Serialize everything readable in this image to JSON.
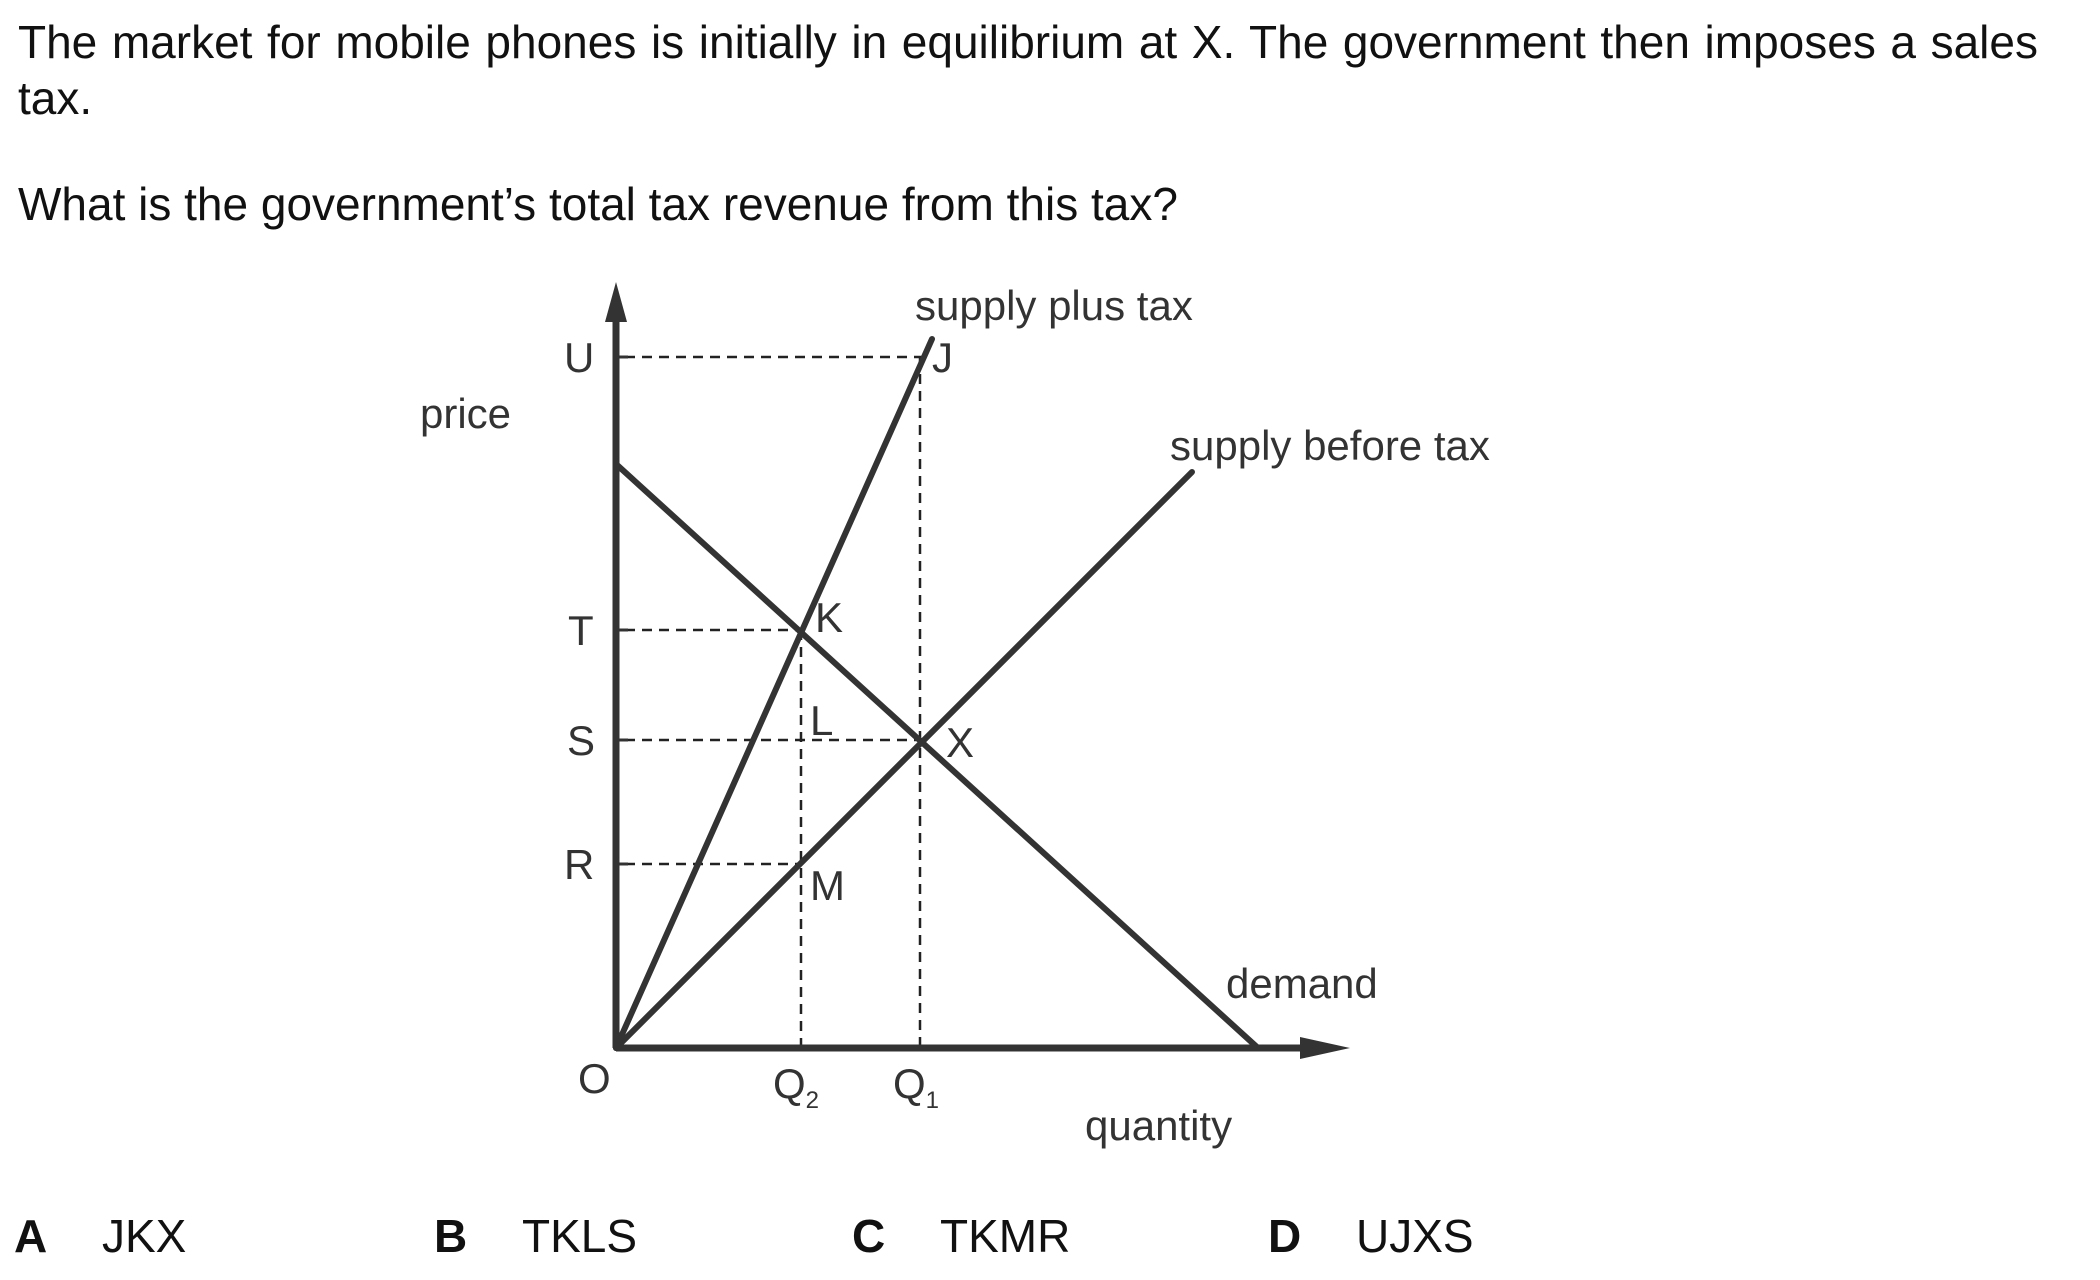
{
  "question": {
    "intro": "The market for mobile phones is initially in equilibrium at X. The government then imposes a sales tax.",
    "prompt": "What is the government’s total tax revenue from this tax?"
  },
  "diagram": {
    "axis_labels": {
      "y": "price",
      "x": "quantity"
    },
    "origin": "O",
    "price_ticks": [
      "U",
      "T",
      "S",
      "R"
    ],
    "quantity_ticks": [
      {
        "base": "Q",
        "sub": "2"
      },
      {
        "base": "Q",
        "sub": "1"
      }
    ],
    "points": [
      "J",
      "K",
      "L",
      "X",
      "M"
    ],
    "curve_labels": {
      "supply_plus_tax": "supply plus tax",
      "supply_before_tax": "supply before tax",
      "demand": "demand"
    }
  },
  "options": [
    {
      "letter": "A",
      "text": "JKX"
    },
    {
      "letter": "B",
      "text": "TKLS"
    },
    {
      "letter": "C",
      "text": "TKMR"
    },
    {
      "letter": "D",
      "text": "UJXS"
    }
  ]
}
